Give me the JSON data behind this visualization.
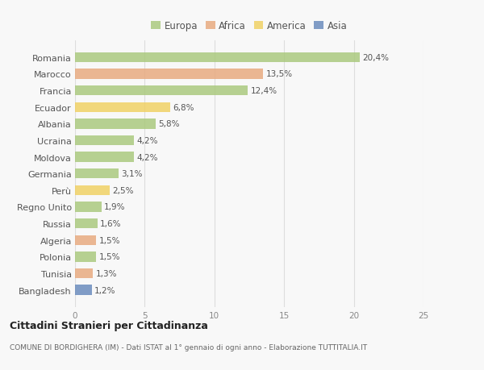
{
  "categories": [
    "Romania",
    "Marocco",
    "Francia",
    "Ecuador",
    "Albania",
    "Ucraina",
    "Moldova",
    "Germania",
    "Perù",
    "Regno Unito",
    "Russia",
    "Algeria",
    "Polonia",
    "Tunisia",
    "Bangladesh"
  ],
  "values": [
    20.4,
    13.5,
    12.4,
    6.8,
    5.8,
    4.2,
    4.2,
    3.1,
    2.5,
    1.9,
    1.6,
    1.5,
    1.5,
    1.3,
    1.2
  ],
  "labels": [
    "20,4%",
    "13,5%",
    "12,4%",
    "6,8%",
    "5,8%",
    "4,2%",
    "4,2%",
    "3,1%",
    "2,5%",
    "1,9%",
    "1,6%",
    "1,5%",
    "1,5%",
    "1,3%",
    "1,2%"
  ],
  "continents": [
    "Europa",
    "Africa",
    "Europa",
    "America",
    "Europa",
    "Europa",
    "Europa",
    "Europa",
    "America",
    "Europa",
    "Europa",
    "Africa",
    "Europa",
    "Africa",
    "Asia"
  ],
  "colors": {
    "Europa": "#a8c87a",
    "Africa": "#e8a87c",
    "America": "#f0d060",
    "Asia": "#6688bb"
  },
  "xlim": [
    0,
    25
  ],
  "xticks": [
    0,
    5,
    10,
    15,
    20,
    25
  ],
  "title": "Cittadini Stranieri per Cittadinanza",
  "subtitle": "COMUNE DI BORDIGHERA (IM) - Dati ISTAT al 1° gennaio di ogni anno - Elaborazione TUTTITALIA.IT",
  "background_color": "#f8f8f8",
  "grid_color": "#dddddd",
  "bar_alpha": 0.82,
  "bar_height": 0.6
}
